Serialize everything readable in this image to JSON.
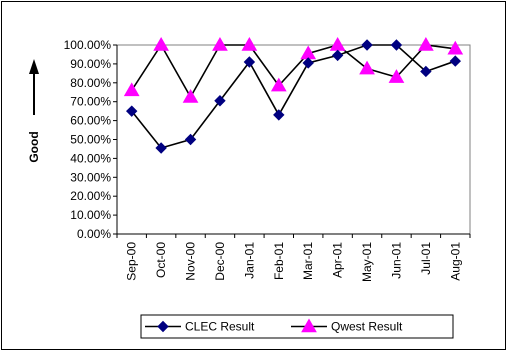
{
  "chart_data": {
    "type": "line",
    "title": "",
    "xlabel": "",
    "ylabel": "Good",
    "ylim": [
      0,
      1
    ],
    "yticks": [
      "0.00%",
      "10.00%",
      "20.00%",
      "30.00%",
      "40.00%",
      "50.00%",
      "60.00%",
      "70.00%",
      "80.00%",
      "90.00%",
      "100.00%"
    ],
    "categories": [
      "Sep-00",
      "Oct-00",
      "Nov-00",
      "Dec-00",
      "Jan-01",
      "Feb-01",
      "Mar-01",
      "Apr-01",
      "May-01",
      "Jun-01",
      "Jul-01",
      "Aug-01"
    ],
    "series": [
      {
        "name": "CLEC Result",
        "marker": "diamond",
        "color": "#000080",
        "values": [
          0.65,
          0.455,
          0.5,
          0.705,
          0.91,
          0.63,
          0.905,
          0.945,
          1.0,
          1.0,
          0.86,
          0.915
        ]
      },
      {
        "name": "Qwest Result",
        "marker": "triangle",
        "color": "#ff00ff",
        "values": [
          0.76,
          1.0,
          0.725,
          1.0,
          1.0,
          0.785,
          0.955,
          1.0,
          0.875,
          0.83,
          1.0,
          0.98
        ]
      }
    ],
    "grid": false,
    "legend_position": "bottom"
  }
}
